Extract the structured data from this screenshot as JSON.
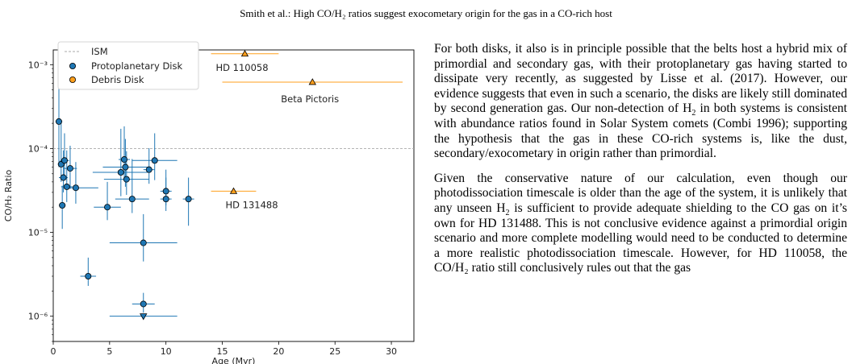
{
  "header": {
    "title": "Smith et al.: High CO/H₂ ratios suggest exocometary origin for the gas in a CO-rich host"
  },
  "chart_data": {
    "type": "scatter",
    "xlabel": "Age (Myr)",
    "ylabel": "CO/H₂ Ratio",
    "xlim": [
      0,
      32
    ],
    "ylim": [
      5e-07,
      0.0015
    ],
    "yscale": "log",
    "xticks": [
      0,
      5,
      10,
      15,
      20,
      25,
      30
    ],
    "yticks": [
      {
        "value": 1e-06,
        "label": "10⁻⁶"
      },
      {
        "value": 1e-05,
        "label": "10⁻⁵"
      },
      {
        "value": 0.0001,
        "label": "10⁻⁴"
      },
      {
        "value": 0.001,
        "label": "10⁻³"
      }
    ],
    "grid": false,
    "legend_position": "top-left",
    "reference_lines": [
      {
        "name": "ISM",
        "y": 0.0001,
        "style": "dashed",
        "color": "#aaaaaa"
      }
    ],
    "series": [
      {
        "name": "Protoplanetary Disk",
        "color": "#1f77b4",
        "marker": "circle",
        "points": [
          {
            "x": 0.5,
            "y": 0.00021,
            "xerr": [
              0.3,
              0.3
            ],
            "yerr": [
              0.00015,
              0.0004
            ]
          },
          {
            "x": 0.7,
            "y": 6.5e-05,
            "xerr": [
              0.3,
              0.3
            ],
            "yerr": [
              2.5e-05,
              0.00015
            ]
          },
          {
            "x": 0.9,
            "y": 4.5e-05,
            "xerr": [
              0.4,
              0.4
            ],
            "yerr": [
              1.5e-05,
              5e-05
            ]
          },
          {
            "x": 1.0,
            "y": 7.2e-05,
            "xerr": [
              0.4,
              0.4
            ],
            "yerr": [
              2.5e-05,
              8e-05
            ]
          },
          {
            "x": 0.8,
            "y": 2.1e-05,
            "xerr": [
              0.3,
              0.3
            ],
            "yerr": [
              1e-05,
              1.5e-05
            ]
          },
          {
            "x": 1.2,
            "y": 3.5e-05,
            "xerr": [
              0.5,
              0.5
            ],
            "yerr": [
              1.2e-05,
              6e-05
            ]
          },
          {
            "x": 1.5,
            "y": 5.8e-05,
            "xerr": [
              0.6,
              0.6
            ],
            "yerr": [
              2.5e-05,
              5e-05
            ]
          },
          {
            "x": 2.0,
            "y": 3.4e-05,
            "xerr": [
              1.0,
              2.0
            ],
            "yerr": [
              1.2e-05,
              3.5e-05
            ]
          },
          {
            "x": 3.1,
            "y": 3e-06,
            "xerr": [
              0.7,
              0.7
            ],
            "yerr": [
              7e-07,
              2e-06
            ]
          },
          {
            "x": 4.8,
            "y": 2e-05,
            "xerr": [
              1.2,
              1.2
            ],
            "yerr": [
              6e-06,
              2e-05
            ]
          },
          {
            "x": 6.0,
            "y": 5.2e-05,
            "xerr": [
              2.5,
              2.5
            ],
            "yerr": [
              2.5e-05,
              0.00012
            ]
          },
          {
            "x": 6.3,
            "y": 7.4e-05,
            "xerr": [
              0.5,
              0.5
            ],
            "yerr": [
              3e-05,
              0.00011
            ]
          },
          {
            "x": 6.4,
            "y": 6e-05,
            "xerr": [
              2.0,
              2.0
            ],
            "yerr": [
              2.5e-05,
              7e-05
            ]
          },
          {
            "x": 6.5,
            "y": 4.3e-05,
            "xerr": [
              2.0,
              2.0
            ],
            "yerr": [
              1.5e-05,
              5e-05
            ]
          },
          {
            "x": 7.0,
            "y": 2.5e-05,
            "xerr": [
              1.5,
              1.5
            ],
            "yerr": [
              8e-06,
              5e-05
            ]
          },
          {
            "x": 8.0,
            "y": 7.5e-06,
            "xerr": [
              3.0,
              3.0
            ],
            "yerr": [
              3e-06,
              9e-06
            ]
          },
          {
            "x": 8.0,
            "y": 1.4e-06,
            "xerr": [
              1.0,
              1.0
            ],
            "yerr": [
              3e-07,
              5e-07
            ]
          },
          {
            "x": 8.5,
            "y": 5.6e-05,
            "xerr": [
              0.5,
              0.5
            ],
            "yerr": [
              1.8e-05,
              4.5e-05
            ]
          },
          {
            "x": 9.0,
            "y": 7.2e-05,
            "xerr": [
              2.0,
              2.0
            ],
            "yerr": [
              3e-05,
              8e-05
            ]
          },
          {
            "x": 10.0,
            "y": 3.1e-05,
            "xerr": [
              0.5,
              0.5
            ],
            "yerr": [
              1e-05,
              2.5e-05
            ]
          },
          {
            "x": 10.0,
            "y": 2.5e-05,
            "xerr": [
              0.5,
              0.5
            ],
            "yerr": [
              7e-06,
              2e-05
            ]
          },
          {
            "x": 12.0,
            "y": 2.5e-05,
            "xerr": [
              0.5,
              0.5
            ],
            "yerr": [
              1.3e-05,
              2e-05
            ]
          }
        ],
        "upper_limits": [
          {
            "x": 8.0,
            "y": 1e-06,
            "xerr": [
              3.0,
              3.0
            ]
          }
        ]
      },
      {
        "name": "Debris Disk",
        "color": "#ff9f1c",
        "marker": "triangle",
        "points": [
          {
            "x": 17,
            "y": 0.00135,
            "xerr": [
              3.0,
              3.0
            ],
            "label": "HD 110058"
          },
          {
            "x": 23,
            "y": 0.00062,
            "xerr": [
              8.0,
              8.0
            ],
            "label": "Beta Pictoris"
          },
          {
            "x": 16,
            "y": 3.1e-05,
            "xerr": [
              2.0,
              2.0
            ],
            "label": "HD 131488"
          }
        ]
      }
    ]
  },
  "body_text": {
    "para1_part1": "For both disks, it also is in principle possible that the belts host a hybrid mix of primordial and secondary gas, with their protoplanetary gas having started to dissipate very recently, as suggested by Lisse et al. (2017). However, our evidence suggests that even in such a scenario, the disks are likely still dominated by second generation gas. Our non-detection of H",
    "para1_sub": "2",
    "para1_part2": " in both systems is consistent with abundance ratios found in Solar System comets (Combi 1996); supporting the hypothesis that the gas in these CO-rich systems is, like the dust, secondary/exocometary in origin rather than primordial.",
    "para2_part1": "Given the conservative nature of our calculation, even though our photodissociation timescale is older than the age of the system, it is unlikely that any unseen H",
    "para2_sub": "2",
    "para2_part2": " is sufficient to provide adequate shielding to the CO gas on it’s own for HD 131488. This is not conclusive evidence against a primordial origin scenario and more complete modelling would need to be conducted to determine a more realistic photodissociation timescale. However, for HD 110058, the CO/H₂ ratio still conclusively rules out that the gas"
  }
}
